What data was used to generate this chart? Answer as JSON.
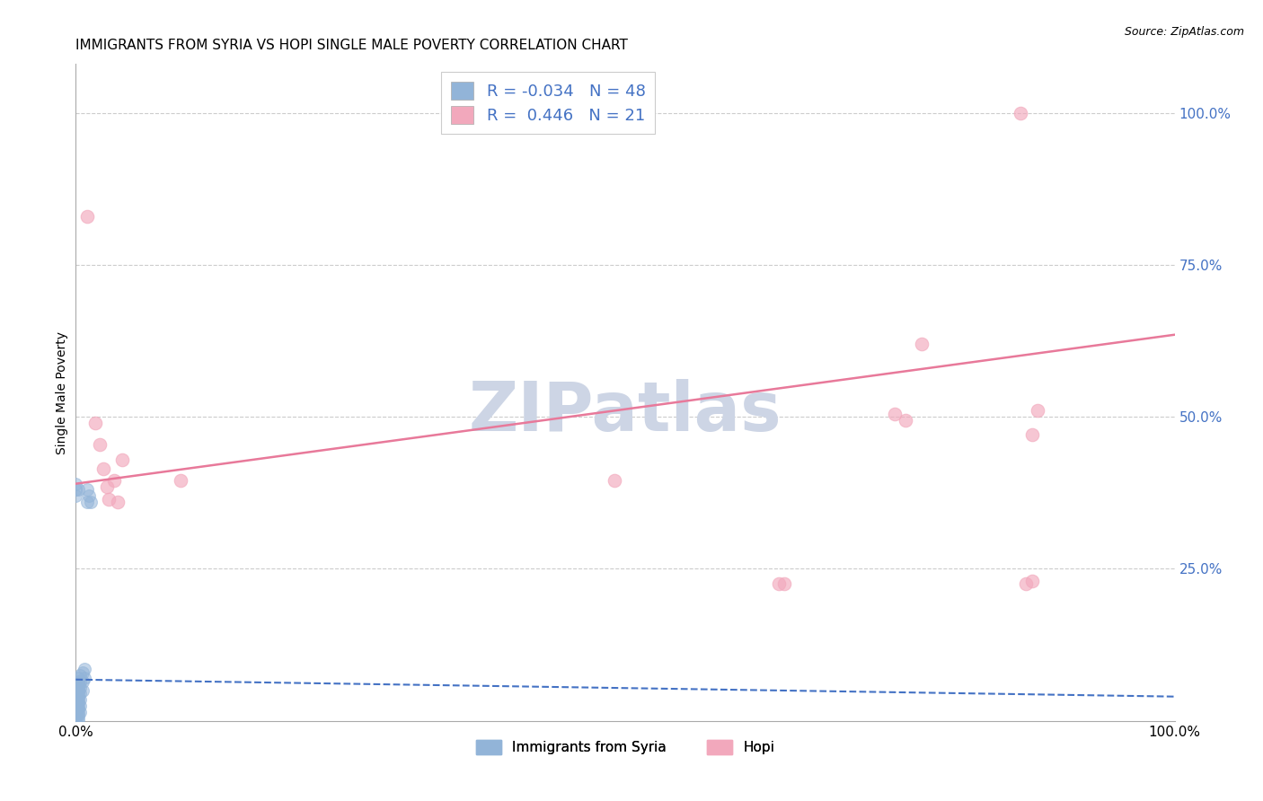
{
  "title": "IMMIGRANTS FROM SYRIA VS HOPI SINGLE MALE POVERTY CORRELATION CHART",
  "source_text": "Source: ZipAtlas.com",
  "ylabel": "Single Male Poverty",
  "watermark": "ZIPatlas",
  "blue_dots": [
    [
      0.0,
      0.06
    ],
    [
      0.0,
      0.055
    ],
    [
      0.0,
      0.05
    ],
    [
      0.0,
      0.045
    ],
    [
      0.0,
      0.04
    ],
    [
      0.0,
      0.035
    ],
    [
      0.0,
      0.03
    ],
    [
      0.0,
      0.025
    ],
    [
      0.0,
      0.02
    ],
    [
      0.0,
      0.015
    ],
    [
      0.0,
      0.01
    ],
    [
      0.0,
      0.005
    ],
    [
      0.0,
      0.0
    ],
    [
      0.002,
      0.07
    ],
    [
      0.002,
      0.065
    ],
    [
      0.002,
      0.06
    ],
    [
      0.002,
      0.055
    ],
    [
      0.002,
      0.05
    ],
    [
      0.002,
      0.045
    ],
    [
      0.002,
      0.04
    ],
    [
      0.002,
      0.035
    ],
    [
      0.002,
      0.03
    ],
    [
      0.002,
      0.025
    ],
    [
      0.002,
      0.02
    ],
    [
      0.002,
      0.015
    ],
    [
      0.002,
      0.01
    ],
    [
      0.002,
      0.005
    ],
    [
      0.002,
      0.0
    ],
    [
      0.004,
      0.075
    ],
    [
      0.004,
      0.065
    ],
    [
      0.004,
      0.055
    ],
    [
      0.004,
      0.045
    ],
    [
      0.004,
      0.035
    ],
    [
      0.004,
      0.025
    ],
    [
      0.004,
      0.015
    ],
    [
      0.006,
      0.08
    ],
    [
      0.006,
      0.065
    ],
    [
      0.006,
      0.05
    ],
    [
      0.008,
      0.085
    ],
    [
      0.008,
      0.07
    ],
    [
      0.01,
      0.38
    ],
    [
      0.01,
      0.36
    ],
    [
      0.012,
      0.37
    ],
    [
      0.014,
      0.36
    ],
    [
      0.0,
      0.38
    ],
    [
      0.0,
      0.37
    ],
    [
      0.0,
      0.39
    ],
    [
      0.002,
      0.38
    ]
  ],
  "pink_dots": [
    [
      0.01,
      0.83
    ],
    [
      0.018,
      0.49
    ],
    [
      0.022,
      0.455
    ],
    [
      0.025,
      0.415
    ],
    [
      0.028,
      0.385
    ],
    [
      0.03,
      0.365
    ],
    [
      0.035,
      0.395
    ],
    [
      0.038,
      0.36
    ],
    [
      0.042,
      0.43
    ],
    [
      0.095,
      0.395
    ],
    [
      0.49,
      0.395
    ],
    [
      0.64,
      0.225
    ],
    [
      0.645,
      0.225
    ],
    [
      0.745,
      0.505
    ],
    [
      0.755,
      0.495
    ],
    [
      0.77,
      0.62
    ],
    [
      0.86,
      1.0
    ],
    [
      0.87,
      0.47
    ],
    [
      0.875,
      0.51
    ],
    [
      0.865,
      0.225
    ],
    [
      0.87,
      0.23
    ]
  ],
  "blue_trend": [
    0.0,
    0.068,
    1.0,
    0.04
  ],
  "pink_trend": [
    0.0,
    0.39,
    1.0,
    0.635
  ],
  "blue_dot_color": "#92b4d8",
  "pink_dot_color": "#f2a8bc",
  "blue_line_color": "#4472c4",
  "pink_line_color": "#e8799a",
  "right_axis_color": "#4472c4",
  "grid_color": "#cccccc",
  "title_fontsize": 11,
  "watermark_color": "#cdd5e5",
  "xlim": [
    0.0,
    1.0
  ],
  "ylim": [
    0.0,
    1.08
  ],
  "legend_r1": "-0.034",
  "legend_n1": "48",
  "legend_r2": "0.446",
  "legend_n2": "21",
  "legend_color": "#4472c4",
  "legend_pink_text": "#e8799a"
}
